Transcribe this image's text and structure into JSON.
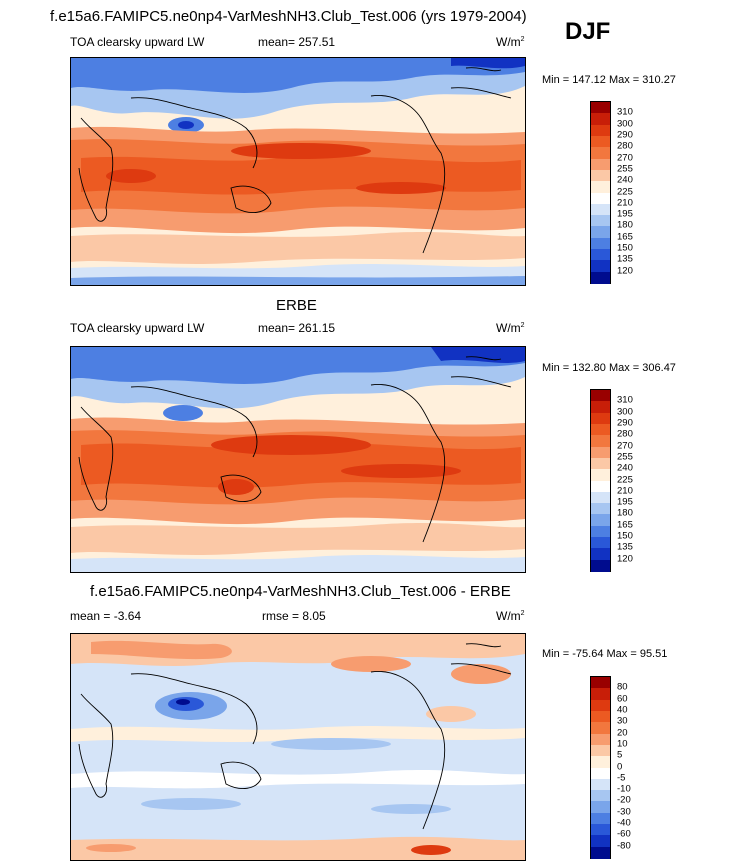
{
  "figure": {
    "season": "DJF"
  },
  "panels": [
    {
      "id": "model",
      "title": "f.e15a6.FAMIPC5.ne0np4-VarMeshNH3.Club_Test.006 (yrs 1979-2004)",
      "left_label": "TOA clearsky upward LW",
      "center_label": "mean= 257.51",
      "units": "W/m",
      "units_sup": "2",
      "minmax": "Min = 147.12 Max = 310.27",
      "colorbar": {
        "labels": [
          "310",
          "300",
          "290",
          "280",
          "270",
          "255",
          "240",
          "225",
          "210",
          "195",
          "180",
          "165",
          "150",
          "135",
          "120"
        ],
        "colors": [
          "#990000",
          "#c81e08",
          "#de3a10",
          "#ec5a22",
          "#f2773e",
          "#f79c6f",
          "#fbc8a6",
          "#fff0dc",
          "#ffffff",
          "#d5e4f8",
          "#a7c6f1",
          "#7aa5ea",
          "#4d7fe2",
          "#2a58d8",
          "#1132c2",
          "#000c8e"
        ]
      }
    },
    {
      "id": "obs",
      "title": "ERBE",
      "left_label": "TOA clearsky upward LW",
      "center_label": "mean= 261.15",
      "units": "W/m",
      "units_sup": "2",
      "minmax": "Min = 132.80 Max = 306.47",
      "colorbar": {
        "labels": [
          "310",
          "300",
          "290",
          "280",
          "270",
          "255",
          "240",
          "225",
          "210",
          "195",
          "180",
          "165",
          "150",
          "135",
          "120"
        ],
        "colors": [
          "#990000",
          "#c81e08",
          "#de3a10",
          "#ec5a22",
          "#f2773e",
          "#f79c6f",
          "#fbc8a6",
          "#fff0dc",
          "#ffffff",
          "#d5e4f8",
          "#a7c6f1",
          "#7aa5ea",
          "#4d7fe2",
          "#2a58d8",
          "#1132c2",
          "#000c8e"
        ]
      }
    },
    {
      "id": "diff",
      "title": "f.e15a6.FAMIPC5.ne0np4-VarMeshNH3.Club_Test.006 - ERBE",
      "left_label": "mean =  -3.64",
      "center_label": "rmse =   8.05",
      "units": "W/m",
      "units_sup": "2",
      "minmax": "Min = -75.64 Max =  95.51",
      "colorbar": {
        "labels": [
          "80",
          "60",
          "40",
          "30",
          "20",
          "10",
          "5",
          "0",
          "-5",
          "-10",
          "-20",
          "-30",
          "-40",
          "-60",
          "-80"
        ],
        "colors": [
          "#990000",
          "#c81e08",
          "#de3a10",
          "#ec5a22",
          "#f2773e",
          "#f79c6f",
          "#fbc8a6",
          "#fff0dc",
          "#ffffff",
          "#d5e4f8",
          "#a7c6f1",
          "#7aa5ea",
          "#4d7fe2",
          "#2a58d8",
          "#1132c2",
          "#000c8e"
        ]
      }
    }
  ]
}
